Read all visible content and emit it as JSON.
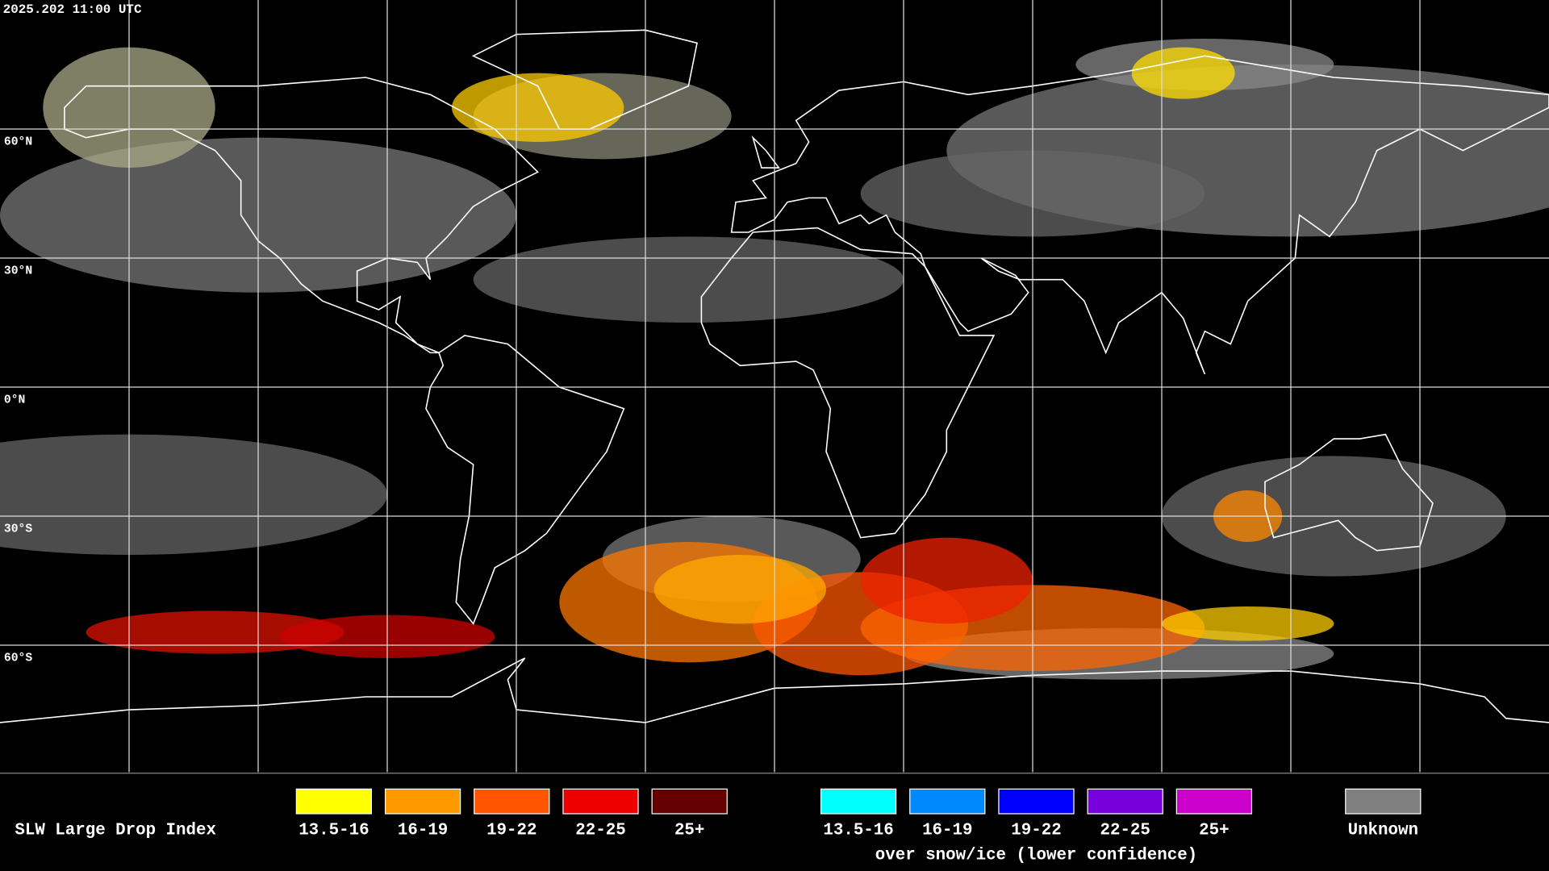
{
  "header": {
    "timestamp": "2025.202 11:00 UTC"
  },
  "map": {
    "latitude_labels": [
      "60°N",
      "30°N",
      "0°N",
      "30°S",
      "60°S"
    ]
  },
  "legend": {
    "title": "SLW Large Drop Index",
    "groups": [
      {
        "items": [
          {
            "label": "13.5-16",
            "color": "#ffff00"
          },
          {
            "label": "16-19",
            "color": "#ff9900"
          },
          {
            "label": "19-22",
            "color": "#ff5500"
          },
          {
            "label": "22-25",
            "color": "#ee0000"
          },
          {
            "label": "25+",
            "color": "#660000"
          }
        ]
      },
      {
        "items": [
          {
            "label": "13.5-16",
            "color": "#00ffff"
          },
          {
            "label": "16-19",
            "color": "#0088ff"
          },
          {
            "label": "19-22",
            "color": "#0000ff"
          },
          {
            "label": "22-25",
            "color": "#7700dd"
          },
          {
            "label": "25+",
            "color": "#cc00cc"
          }
        ],
        "caption": "over snow/ice (lower confidence)"
      },
      {
        "items": [
          {
            "label": "Unknown",
            "color": "#808080"
          }
        ]
      }
    ]
  }
}
